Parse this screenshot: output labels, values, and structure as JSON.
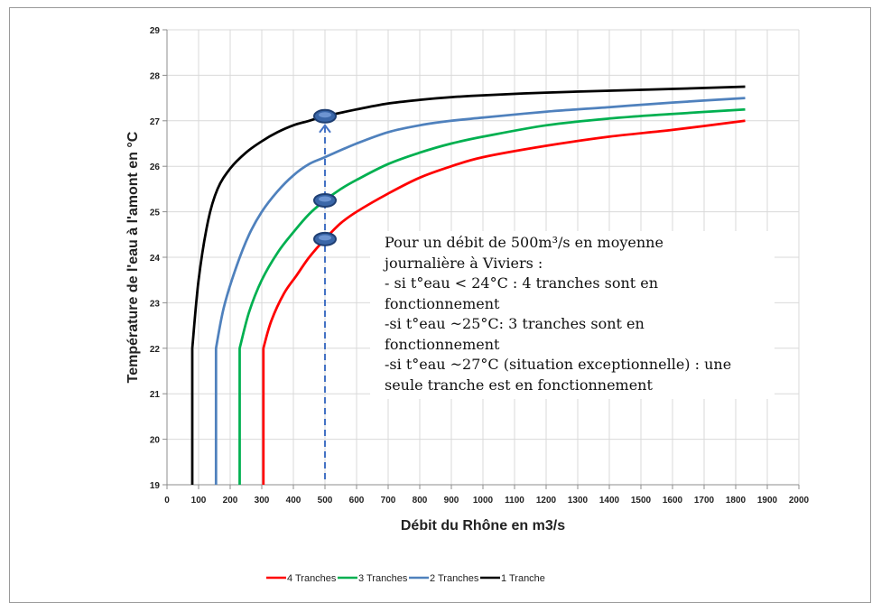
{
  "chart_data": {
    "type": "line",
    "xlabel": "Débit du Rhône en m3/s",
    "ylabel": "Température de l'eau à l'amont en °C",
    "xlim": [
      0,
      2000
    ],
    "ylim": [
      19,
      29
    ],
    "x_ticks": [
      "0",
      "100",
      "200",
      "300",
      "400",
      "500",
      "600",
      "700",
      "800",
      "900",
      "1000",
      "1100",
      "1200",
      "1300",
      "1400",
      "1500",
      "1600",
      "1700",
      "1800",
      "1900",
      "2000"
    ],
    "y_ticks": [
      "19",
      "20",
      "21",
      "22",
      "23",
      "24",
      "25",
      "26",
      "27",
      "28",
      "29"
    ],
    "grid": true,
    "legend_position": "bottom",
    "series": [
      {
        "name": "4 Tranches",
        "color": "#ff0000",
        "points": [
          [
            305,
            19
          ],
          [
            305,
            22
          ],
          [
            330,
            22.6
          ],
          [
            370,
            23.2
          ],
          [
            410,
            23.6
          ],
          [
            450,
            24.0
          ],
          [
            500,
            24.4
          ],
          [
            550,
            24.75
          ],
          [
            600,
            25.0
          ],
          [
            700,
            25.4
          ],
          [
            800,
            25.75
          ],
          [
            900,
            26.0
          ],
          [
            1000,
            26.2
          ],
          [
            1200,
            26.45
          ],
          [
            1400,
            26.65
          ],
          [
            1600,
            26.8
          ],
          [
            1830,
            27.0
          ]
        ]
      },
      {
        "name": "3 Tranches",
        "color": "#00b050",
        "points": [
          [
            230,
            19
          ],
          [
            230,
            22
          ],
          [
            260,
            22.8
          ],
          [
            300,
            23.5
          ],
          [
            350,
            24.1
          ],
          [
            400,
            24.55
          ],
          [
            450,
            24.95
          ],
          [
            500,
            25.25
          ],
          [
            550,
            25.5
          ],
          [
            600,
            25.7
          ],
          [
            700,
            26.05
          ],
          [
            800,
            26.3
          ],
          [
            900,
            26.5
          ],
          [
            1000,
            26.65
          ],
          [
            1200,
            26.9
          ],
          [
            1400,
            27.05
          ],
          [
            1600,
            27.15
          ],
          [
            1830,
            27.25
          ]
        ]
      },
      {
        "name": "2 Tranches",
        "color": "#4f81bd",
        "points": [
          [
            155,
            19
          ],
          [
            155,
            22
          ],
          [
            180,
            22.9
          ],
          [
            220,
            23.8
          ],
          [
            260,
            24.5
          ],
          [
            300,
            25.0
          ],
          [
            350,
            25.45
          ],
          [
            400,
            25.8
          ],
          [
            450,
            26.05
          ],
          [
            500,
            26.2
          ],
          [
            600,
            26.5
          ],
          [
            700,
            26.75
          ],
          [
            800,
            26.9
          ],
          [
            900,
            27.0
          ],
          [
            1000,
            27.07
          ],
          [
            1200,
            27.2
          ],
          [
            1400,
            27.3
          ],
          [
            1600,
            27.4
          ],
          [
            1830,
            27.5
          ]
        ]
      },
      {
        "name": "1 Tranche",
        "color": "#000000",
        "points": [
          [
            80,
            19
          ],
          [
            80,
            22
          ],
          [
            100,
            23.5
          ],
          [
            130,
            24.8
          ],
          [
            160,
            25.5
          ],
          [
            200,
            25.95
          ],
          [
            250,
            26.3
          ],
          [
            300,
            26.55
          ],
          [
            350,
            26.75
          ],
          [
            400,
            26.9
          ],
          [
            450,
            27.0
          ],
          [
            500,
            27.1
          ],
          [
            600,
            27.25
          ],
          [
            700,
            27.38
          ],
          [
            800,
            27.46
          ],
          [
            900,
            27.52
          ],
          [
            1000,
            27.56
          ],
          [
            1200,
            27.62
          ],
          [
            1400,
            27.66
          ],
          [
            1600,
            27.7
          ],
          [
            1830,
            27.75
          ]
        ]
      }
    ],
    "markers": [
      {
        "x": 500,
        "y": 27.1
      },
      {
        "x": 500,
        "y": 25.25
      },
      {
        "x": 500,
        "y": 24.4
      }
    ],
    "reference_line": {
      "x": 500,
      "y_from": 19,
      "y_to": 27.1,
      "color": "#4472c4",
      "style": "dashed",
      "arrow": true
    },
    "annotation_lines": [
      "Pour un débit de 500m³/s en moyenne",
      "journalière à Viviers :",
      "- si t°eau < 24°C : 4 tranches sont en",
      "fonctionnement",
      "-si t°eau ~25°C: 3 tranches sont en",
      "fonctionnement",
      "-si t°eau ~27°C (situation exceptionnelle) : une",
      "seule tranche est en fonctionnement"
    ]
  }
}
